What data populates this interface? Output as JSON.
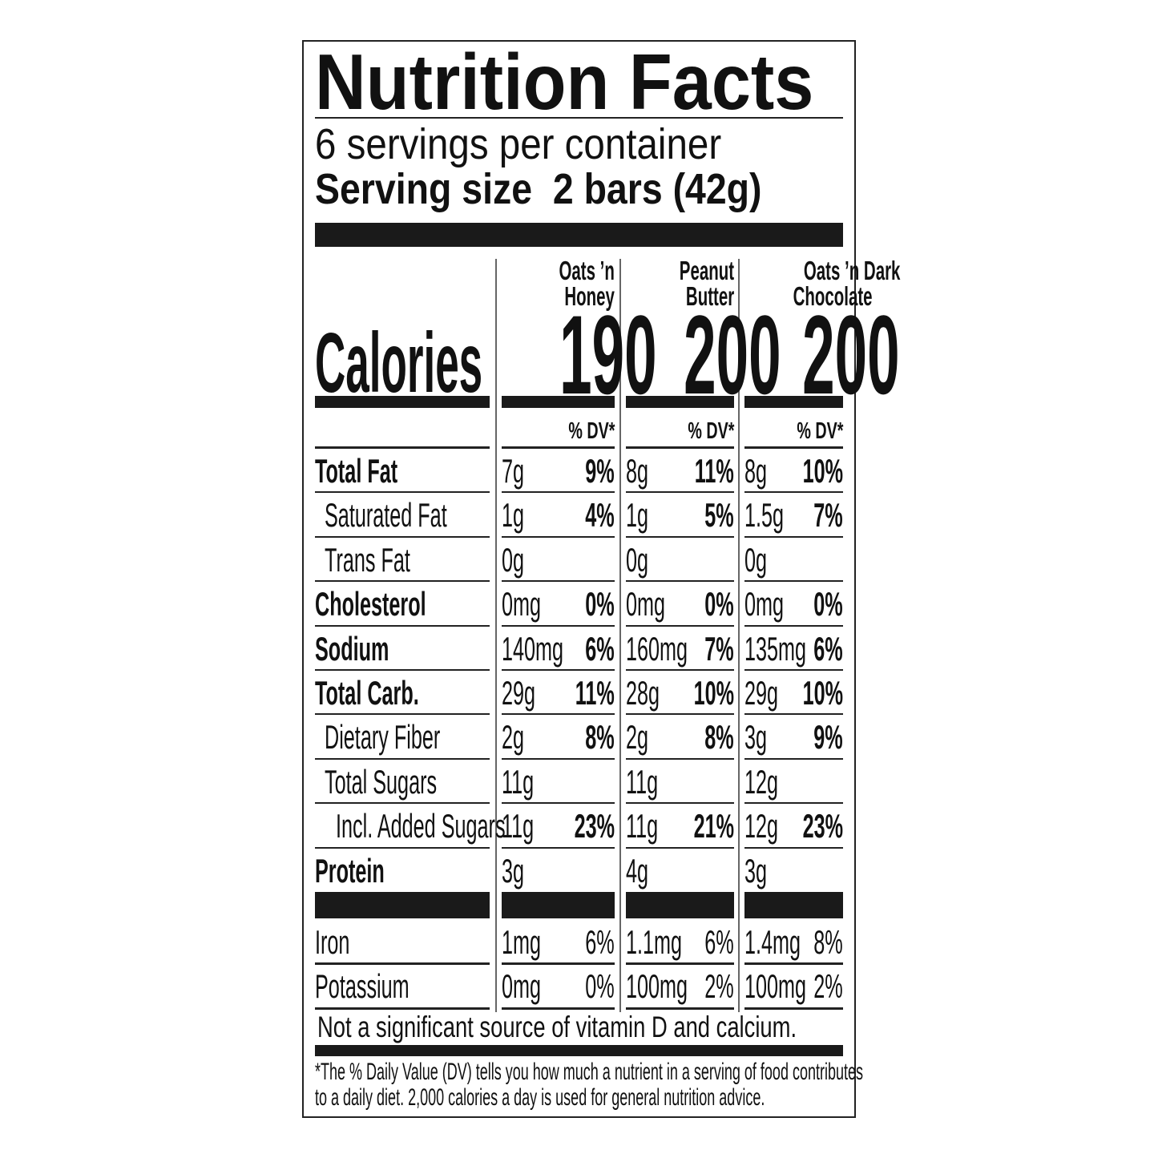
{
  "header": {
    "title": "Nutrition Facts",
    "servings_per_container": "6 servings per container",
    "serving_size_label": "Serving size",
    "serving_size_value": "2 bars (42g)"
  },
  "calories_label": "Calories",
  "dv_header": "% DV*",
  "products": [
    {
      "name_line1": "Oats ’n",
      "name_line2": "Honey",
      "calories": "190"
    },
    {
      "name_line1": "Peanut",
      "name_line2": "Butter",
      "calories": "200"
    },
    {
      "name_line1": "Oats ’n Dark",
      "name_line2": "Chocolate",
      "calories": "200"
    }
  ],
  "nutrients": [
    {
      "label": "Total Fat",
      "bold": true,
      "indent": 0,
      "values": [
        [
          "7g",
          "9%"
        ],
        [
          "8g",
          "11%"
        ],
        [
          "8g",
          "10%"
        ]
      ]
    },
    {
      "label": "Saturated Fat",
      "bold": false,
      "indent": 1,
      "values": [
        [
          "1g",
          "4%"
        ],
        [
          "1g",
          "5%"
        ],
        [
          "1.5g",
          "7%"
        ]
      ]
    },
    {
      "label": "Trans Fat",
      "bold": false,
      "indent": 1,
      "values": [
        [
          "0g",
          ""
        ],
        [
          "0g",
          ""
        ],
        [
          "0g",
          ""
        ]
      ]
    },
    {
      "label": "Cholesterol",
      "bold": true,
      "indent": 0,
      "values": [
        [
          "0mg",
          "0%"
        ],
        [
          "0mg",
          "0%"
        ],
        [
          "0mg",
          "0%"
        ]
      ]
    },
    {
      "label": "Sodium",
      "bold": true,
      "indent": 0,
      "values": [
        [
          "140mg",
          "6%"
        ],
        [
          "160mg",
          "7%"
        ],
        [
          "135mg",
          "6%"
        ]
      ]
    },
    {
      "label": "Total Carb.",
      "bold": true,
      "indent": 0,
      "values": [
        [
          "29g",
          "11%"
        ],
        [
          "28g",
          "10%"
        ],
        [
          "29g",
          "10%"
        ]
      ]
    },
    {
      "label": "Dietary Fiber",
      "bold": false,
      "indent": 1,
      "values": [
        [
          "2g",
          "8%"
        ],
        [
          "2g",
          "8%"
        ],
        [
          "3g",
          "9%"
        ]
      ]
    },
    {
      "label": "Total Sugars",
      "bold": false,
      "indent": 1,
      "values": [
        [
          "11g",
          ""
        ],
        [
          "11g",
          ""
        ],
        [
          "12g",
          ""
        ]
      ]
    },
    {
      "label": "Incl. Added Sugars",
      "bold": false,
      "indent": 2,
      "values": [
        [
          "11g",
          "23%"
        ],
        [
          "11g",
          "21%"
        ],
        [
          "12g",
          "23%"
        ]
      ]
    },
    {
      "label": "Protein",
      "bold": true,
      "indent": 0,
      "values": [
        [
          "3g",
          ""
        ],
        [
          "4g",
          ""
        ],
        [
          "3g",
          ""
        ]
      ]
    }
  ],
  "minerals": [
    {
      "label": "Iron",
      "values": [
        [
          "1mg",
          "6%"
        ],
        [
          "1.1mg",
          "6%"
        ],
        [
          "1.4mg",
          "8%"
        ]
      ]
    },
    {
      "label": "Potassium",
      "values": [
        [
          "0mg",
          "0%"
        ],
        [
          "100mg",
          "2%"
        ],
        [
          "100mg",
          "2%"
        ]
      ]
    }
  ],
  "not_significant": "Not a significant source of vitamin D and calcium.",
  "footnote_line1": "*The % Daily Value (DV) tells you how much a nutrient in a serving of food contributes",
  "footnote_line2": "to a daily diet. 2,000 calories a day is used for general nutrition advice."
}
